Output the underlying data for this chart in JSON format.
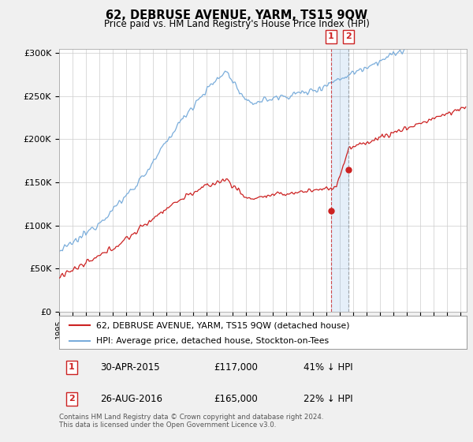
{
  "title": "62, DEBRUSE AVENUE, YARM, TS15 9QW",
  "subtitle": "Price paid vs. HM Land Registry's House Price Index (HPI)",
  "ylabel_ticks": [
    "£0",
    "£50K",
    "£100K",
    "£150K",
    "£200K",
    "£250K",
    "£300K"
  ],
  "ytick_vals": [
    0,
    50000,
    100000,
    150000,
    200000,
    250000,
    300000
  ],
  "ylim": [
    0,
    305000
  ],
  "xlim_start": 1995.0,
  "xlim_end": 2025.5,
  "hpi_color": "#7aaddb",
  "price_color": "#cc2222",
  "legend_label_red": "62, DEBRUSE AVENUE, YARM, TS15 9QW (detached house)",
  "legend_label_blue": "HPI: Average price, detached house, Stockton-on-Tees",
  "transaction1_date": "30-APR-2015",
  "transaction1_price": "£117,000",
  "transaction1_hpi": "41% ↓ HPI",
  "transaction1_x": 2015.33,
  "transaction1_y": 117000,
  "transaction2_date": "26-AUG-2016",
  "transaction2_price": "£165,000",
  "transaction2_hpi": "22% ↓ HPI",
  "transaction2_x": 2016.65,
  "transaction2_y": 165000,
  "footer_text": "Contains HM Land Registry data © Crown copyright and database right 2024.\nThis data is licensed under the Open Government Licence v3.0.",
  "background_color": "#f0f0f0",
  "plot_bg_color": "#ffffff",
  "grid_color": "#cccccc",
  "hatch_start": 2024.5
}
